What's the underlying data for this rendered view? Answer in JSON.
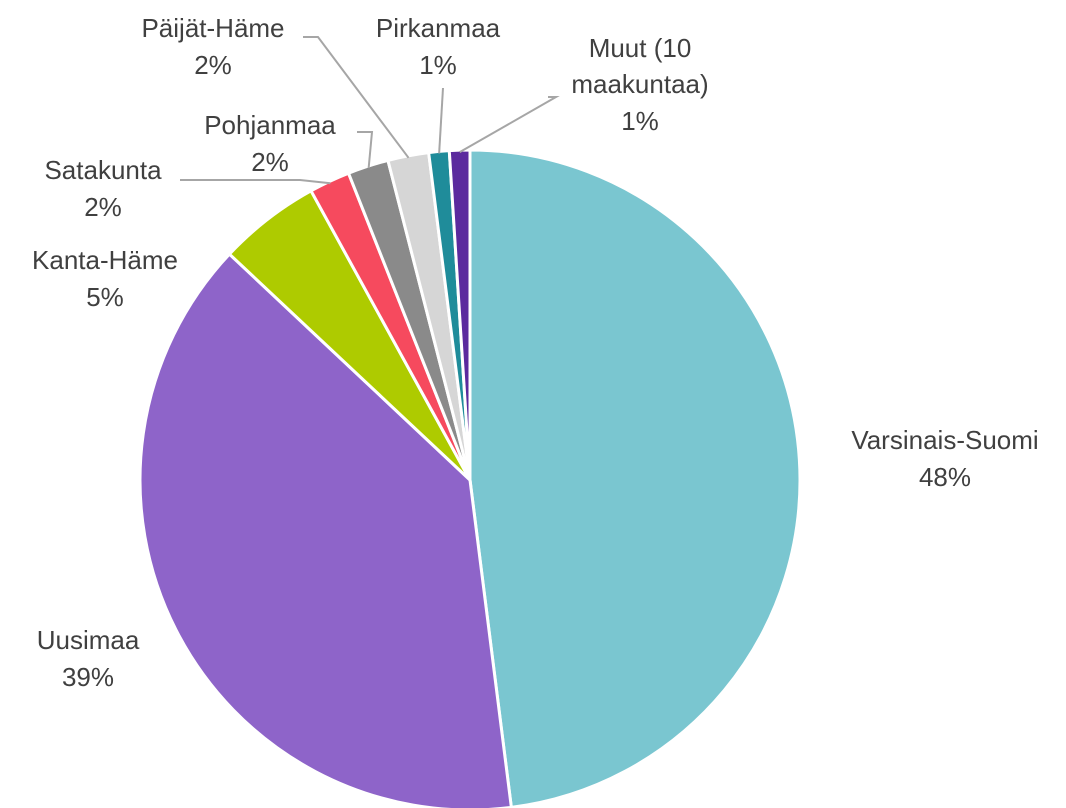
{
  "chart_data": {
    "type": "pie",
    "categories": [
      "Varsinais-Suomi",
      "Uusimaa",
      "Kanta-Häme",
      "Satakunta",
      "Pohjanmaa",
      "Päijät-Häme",
      "Pirkanmaa",
      "Muut (10 maakuntaa)"
    ],
    "values": [
      48,
      39,
      5,
      2,
      2,
      2,
      1,
      1
    ],
    "value_labels": [
      "48%",
      "39%",
      "5%",
      "2%",
      "2%",
      "2%",
      "1%",
      "1%"
    ],
    "colors": [
      "#7AC6D0",
      "#8E64C9",
      "#AECB00",
      "#F64A5E",
      "#8A8A8A",
      "#D6D6D6",
      "#1F8C9A",
      "#5B2A9E"
    ]
  }
}
